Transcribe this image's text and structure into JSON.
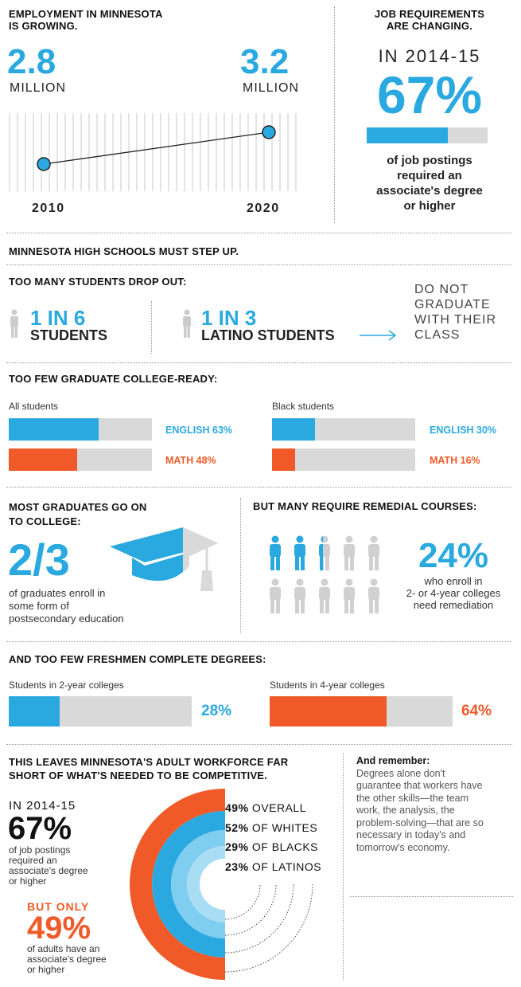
{
  "colors": {
    "blue": "#2aa9e0",
    "orange": "#f05a28",
    "gray": "#d9d9d9",
    "lightblue": "#7fcdef"
  },
  "employment": {
    "title_line1": "EMPLOYMENT IN MINNESOTA",
    "title_line2": "IS GROWING.",
    "left_value": "2.8",
    "left_unit": "MILLION",
    "right_value": "3.2",
    "right_unit": "MILLION",
    "year_start": "2010",
    "year_end": "2020",
    "start_millions": 2.8,
    "end_millions": 3.2
  },
  "job_requirements": {
    "title_line1": "JOB REQUIREMENTS",
    "title_line2": "ARE CHANGING.",
    "year_label": "IN 2014-15",
    "percent": "67%",
    "fraction": 0.67,
    "caption_line1": "of job postings",
    "caption_line2": "required an",
    "caption_line3": "associate's degree",
    "caption_line4": "or higher"
  },
  "high_schools": {
    "title": "MINNESOTA HIGH SCHOOLS MUST STEP UP."
  },
  "dropout": {
    "title": "TOO MANY STUDENTS DROP OUT:",
    "stat1_ratio": "1 IN 6",
    "stat1_label": "STUDENTS",
    "stat2_ratio": "1 IN 3",
    "stat2_label": "LATINO STUDENTS",
    "outcome_line1": "DO NOT",
    "outcome_line2": "GRADUATE",
    "outcome_line3": "WITH THEIR",
    "outcome_line4": "CLASS"
  },
  "college_ready": {
    "title": "TOO FEW GRADUATE COLLEGE-READY:",
    "group1": "All students",
    "group1_english": "ENGLISH 63%",
    "group1_english_frac": 0.63,
    "group1_math": "MATH 48%",
    "group1_math_frac": 0.48,
    "group2": "Black students",
    "group2_english": "ENGLISH 30%",
    "group2_english_frac": 0.3,
    "group2_math": "MATH 16%",
    "group2_math_frac": 0.16
  },
  "go_to_college": {
    "title_line1": "MOST GRADUATES GO ON",
    "title_line2": "TO COLLEGE:",
    "value": "2/3",
    "caption_line1": "of graduates enroll in",
    "caption_line2": "some form of",
    "caption_line3": "postsecondary education"
  },
  "remedial": {
    "title": "BUT MANY REQUIRE REMEDIAL COURSES:",
    "percent": "24%",
    "caption_line1": "who enroll in",
    "caption_line2": "2- or 4-year colleges",
    "caption_line3": "need remediation"
  },
  "degrees": {
    "title": "AND TOO FEW FRESHMEN COMPLETE DEGREES:",
    "group1": "Students in 2-year colleges",
    "group1_pct": "28%",
    "group1_frac": 0.28,
    "group2": "Students in 4-year colleges",
    "group2_pct": "64%",
    "group2_frac": 0.64
  },
  "workforce": {
    "title_line1": "THIS LEAVES MINNESOTA'S ADULT WORKFORCE FAR",
    "title_line2": "SHORT OF WHAT'S NEEDED TO BE COMPETITIVE.",
    "year_label": "IN 2014-15",
    "percent": "67%",
    "caption_line1": "of job postings",
    "caption_line2": "required an",
    "caption_line3": "associate's degree",
    "caption_line4": "or higher",
    "but_only": "BUT ONLY",
    "adult_percent": "49%",
    "adult_caption_line1": "of adults have an",
    "adult_caption_line2": "associate's degree",
    "adult_caption_line3": "or higher",
    "rings": [
      {
        "pct": "49%",
        "label": "OVERALL"
      },
      {
        "pct": "52%",
        "label": "OF WHITES"
      },
      {
        "pct": "29%",
        "label": "OF BLACKS"
      },
      {
        "pct": "23%",
        "label": "OF LATINOS"
      }
    ]
  },
  "remember": {
    "title": "And remember:",
    "line1": "Degrees alone don't",
    "line2": "guarantee that workers have",
    "line3": "the other skills—the team",
    "line4": "work, the analysis, the",
    "line5": "problem-solving—that are so",
    "line6": "necessary in today's and",
    "line7": "tomorrow's economy."
  }
}
